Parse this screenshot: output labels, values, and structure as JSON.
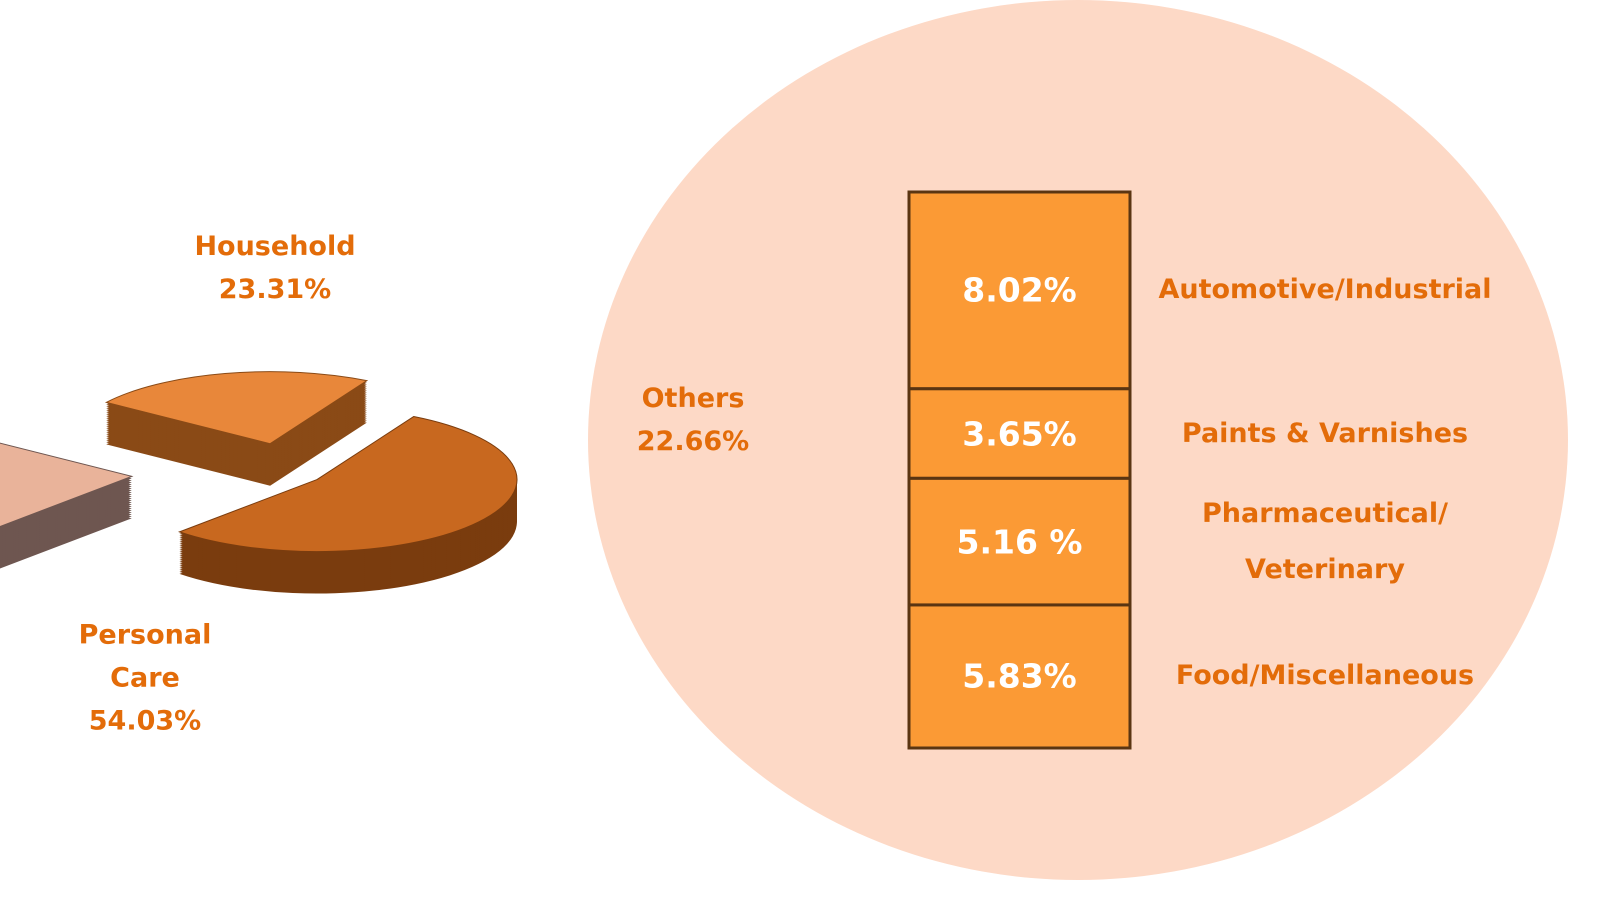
{
  "chart_data": [
    {
      "type": "pie",
      "categories": [
        "Household",
        "Personal Care",
        "Others"
      ],
      "values": [
        23.31,
        54.03,
        22.66
      ],
      "value_labels": [
        "23.31%",
        "54.03%",
        "22.66%"
      ],
      "colors": [
        "#e8873a",
        "#c8681f",
        "#e9b39a"
      ],
      "side_colors": [
        "#8a4a16",
        "#7a3c0e",
        "#6e5650"
      ]
    },
    {
      "type": "bar",
      "categories": [
        "Automotive/Industrial",
        "Paints & Varnishes",
        "Pharmaceutical/ Veterinary",
        "Food/Miscellaneous"
      ],
      "values": [
        8.02,
        3.65,
        5.16,
        5.83
      ],
      "value_labels": [
        "8.02%",
        "3.65%",
        "5.16 %",
        "5.83%"
      ],
      "color": "#fb9a35",
      "background": "#fdd9c6"
    }
  ]
}
